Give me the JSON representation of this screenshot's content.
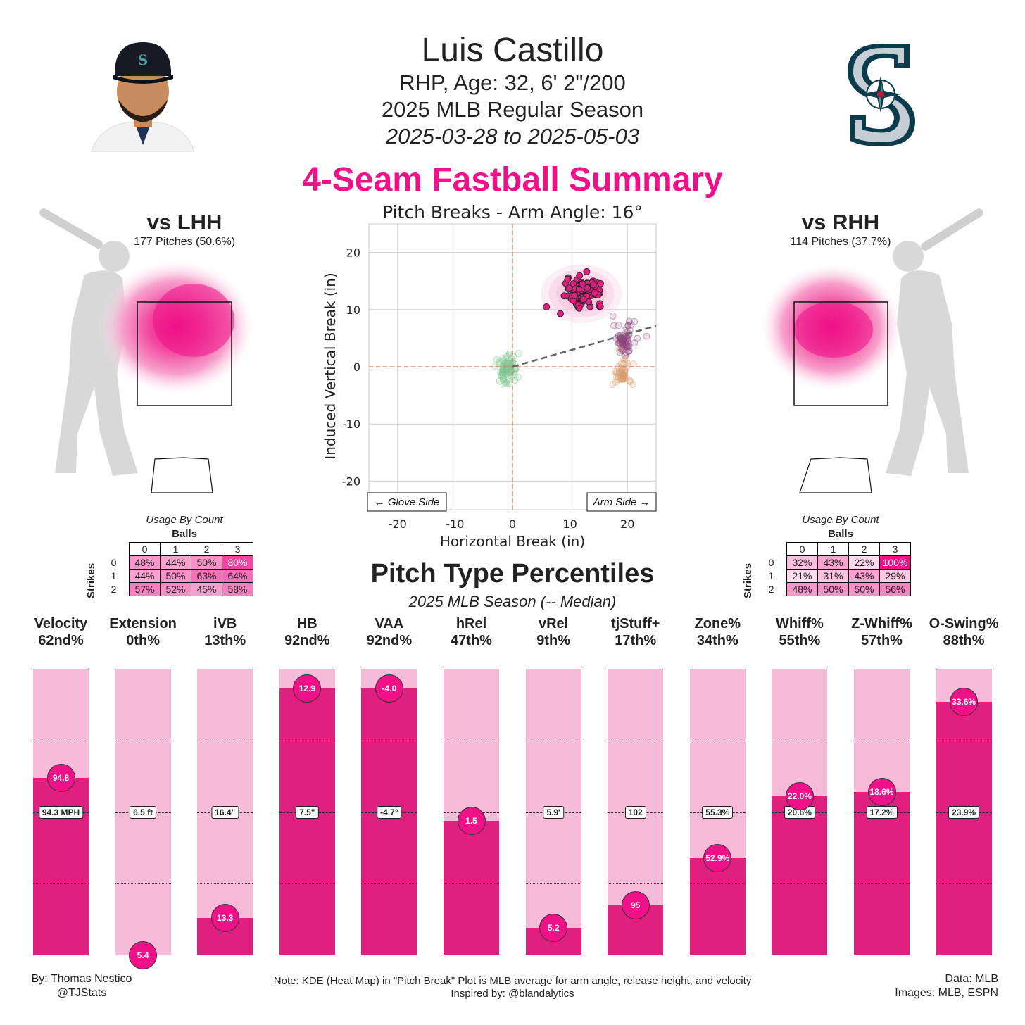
{
  "header": {
    "name": "Luis Castillo",
    "bio": "RHP, Age: 32, 6' 2\"/200",
    "season": "2025 MLB Regular Season",
    "dates": "2025-03-28 to 2025-05-03",
    "pitch_title": "4-Seam Fastball Summary",
    "icons": {
      "player": "player-headshot-icon",
      "team": "mariners-logo-icon"
    }
  },
  "lhh": {
    "title": "vs LHH",
    "pitches": "177 Pitches (50.6%)",
    "usage_caption": "Usage By Count",
    "balls_label": "Balls",
    "strikes_label": "Strikes",
    "ball_cols": [
      "0",
      "1",
      "2",
      "3"
    ],
    "rows": [
      {
        "strike": "0",
        "cells": [
          "48%",
          "44%",
          "50%",
          "80%"
        ],
        "levels": [
          0.48,
          0.44,
          0.5,
          0.8
        ]
      },
      {
        "strike": "1",
        "cells": [
          "44%",
          "50%",
          "63%",
          "64%"
        ],
        "levels": [
          0.44,
          0.5,
          0.63,
          0.64
        ]
      },
      {
        "strike": "2",
        "cells": [
          "57%",
          "52%",
          "45%",
          "58%"
        ],
        "levels": [
          0.57,
          0.52,
          0.45,
          0.58
        ]
      }
    ]
  },
  "rhh": {
    "title": "vs RHH",
    "pitches": "114 Pitches (37.7%)",
    "usage_caption": "Usage By Count",
    "balls_label": "Balls",
    "strikes_label": "Strikes",
    "ball_cols": [
      "0",
      "1",
      "2",
      "3"
    ],
    "rows": [
      {
        "strike": "0",
        "cells": [
          "32%",
          "43%",
          "22%",
          "100%"
        ],
        "levels": [
          0.32,
          0.43,
          0.22,
          1.0
        ]
      },
      {
        "strike": "1",
        "cells": [
          "21%",
          "31%",
          "43%",
          "29%"
        ],
        "levels": [
          0.21,
          0.31,
          0.43,
          0.29
        ]
      },
      {
        "strike": "2",
        "cells": [
          "48%",
          "50%",
          "50%",
          "56%"
        ],
        "levels": [
          0.48,
          0.5,
          0.5,
          0.56
        ]
      }
    ]
  },
  "chart_data": [
    {
      "type": "scatter",
      "title": "Pitch Breaks - Arm Angle: 16°",
      "xlabel": "Horizontal Break (in)",
      "ylabel": "Induced Vertical Break (in)",
      "xlim": [
        -25,
        25
      ],
      "ylim": [
        -25,
        25
      ],
      "xticks": [
        -20,
        -10,
        0,
        10,
        20
      ],
      "yticks": [
        -20,
        -10,
        0,
        10,
        20
      ],
      "grid": true,
      "annotations": [
        "← Glove Side",
        "Arm Side →"
      ],
      "arm_angle_deg": 16,
      "colors": {
        "fastball": "#e0207e",
        "purple": "#8a3f7a",
        "green": "#7cc48a",
        "orange": "#d99a6c",
        "kde": "#f5bbd8"
      },
      "series": [
        {
          "cluster": "fastball",
          "center": [
            12.5,
            13.2
          ],
          "spread": [
            2.2,
            1.6
          ],
          "n": 110
        },
        {
          "cluster": "purple",
          "center": [
            19.5,
            4.8
          ],
          "spread": [
            1.4,
            2.0
          ],
          "n": 60
        },
        {
          "cluster": "orange",
          "center": [
            19.0,
            -1.2
          ],
          "spread": [
            1.2,
            1.8
          ],
          "n": 45
        },
        {
          "cluster": "green",
          "center": [
            -0.8,
            -0.5
          ],
          "spread": [
            1.4,
            2.2
          ],
          "n": 70
        }
      ]
    },
    {
      "type": "bar",
      "title": "Pitch Type Percentiles",
      "subtitle": "2025 MLB Season (-- Median)",
      "metrics": [
        {
          "name": "Velocity",
          "pct": "62nd%",
          "value": "94.8",
          "median": "94.3 MPH",
          "level": 0.62
        },
        {
          "name": "Extension",
          "pct": "0th%",
          "value": "5.4",
          "median": "6.5 ft",
          "level": 0.0
        },
        {
          "name": "iVB",
          "pct": "13th%",
          "value": "13.3",
          "median": "16.4\"",
          "level": 0.13
        },
        {
          "name": "HB",
          "pct": "92nd%",
          "value": "12.9",
          "median": "7.5\"",
          "level": 0.93
        },
        {
          "name": "VAA",
          "pct": "92nd%",
          "value": "-4.0",
          "median": "-4.7°",
          "level": 0.93
        },
        {
          "name": "hRel",
          "pct": "47th%",
          "value": "1.5",
          "median": "",
          "level": 0.47
        },
        {
          "name": "vRel",
          "pct": "9th%",
          "value": "5.2",
          "median": "5.9'",
          "level": 0.095
        },
        {
          "name": "tjStuff+",
          "pct": "17th%",
          "value": "95",
          "median": "102",
          "level": 0.175
        },
        {
          "name": "Zone%",
          "pct": "34th%",
          "value": "52.9%",
          "median": "55.3%",
          "level": 0.34
        },
        {
          "name": "Whiff%",
          "pct": "55th%",
          "value": "22.0%",
          "median": "20.6%",
          "level": 0.555
        },
        {
          "name": "Z-Whiff%",
          "pct": "57th%",
          "value": "18.6%",
          "median": "17.2%",
          "level": 0.57
        },
        {
          "name": "O-Swing%",
          "pct": "88th%",
          "value": "33.6%",
          "median": "23.9%",
          "level": 0.885
        }
      ]
    }
  ],
  "footer": {
    "by": "By: Thomas Nestico",
    "handle": "@TJStats",
    "note": "Note: KDE (Heat Map) in \"Pitch Break\" Plot is MLB average for arm angle, release height, and velocity",
    "inspired": "Inspired by: @blandalytics",
    "data": "Data: MLB",
    "images": "Images: MLB, ESPN"
  }
}
